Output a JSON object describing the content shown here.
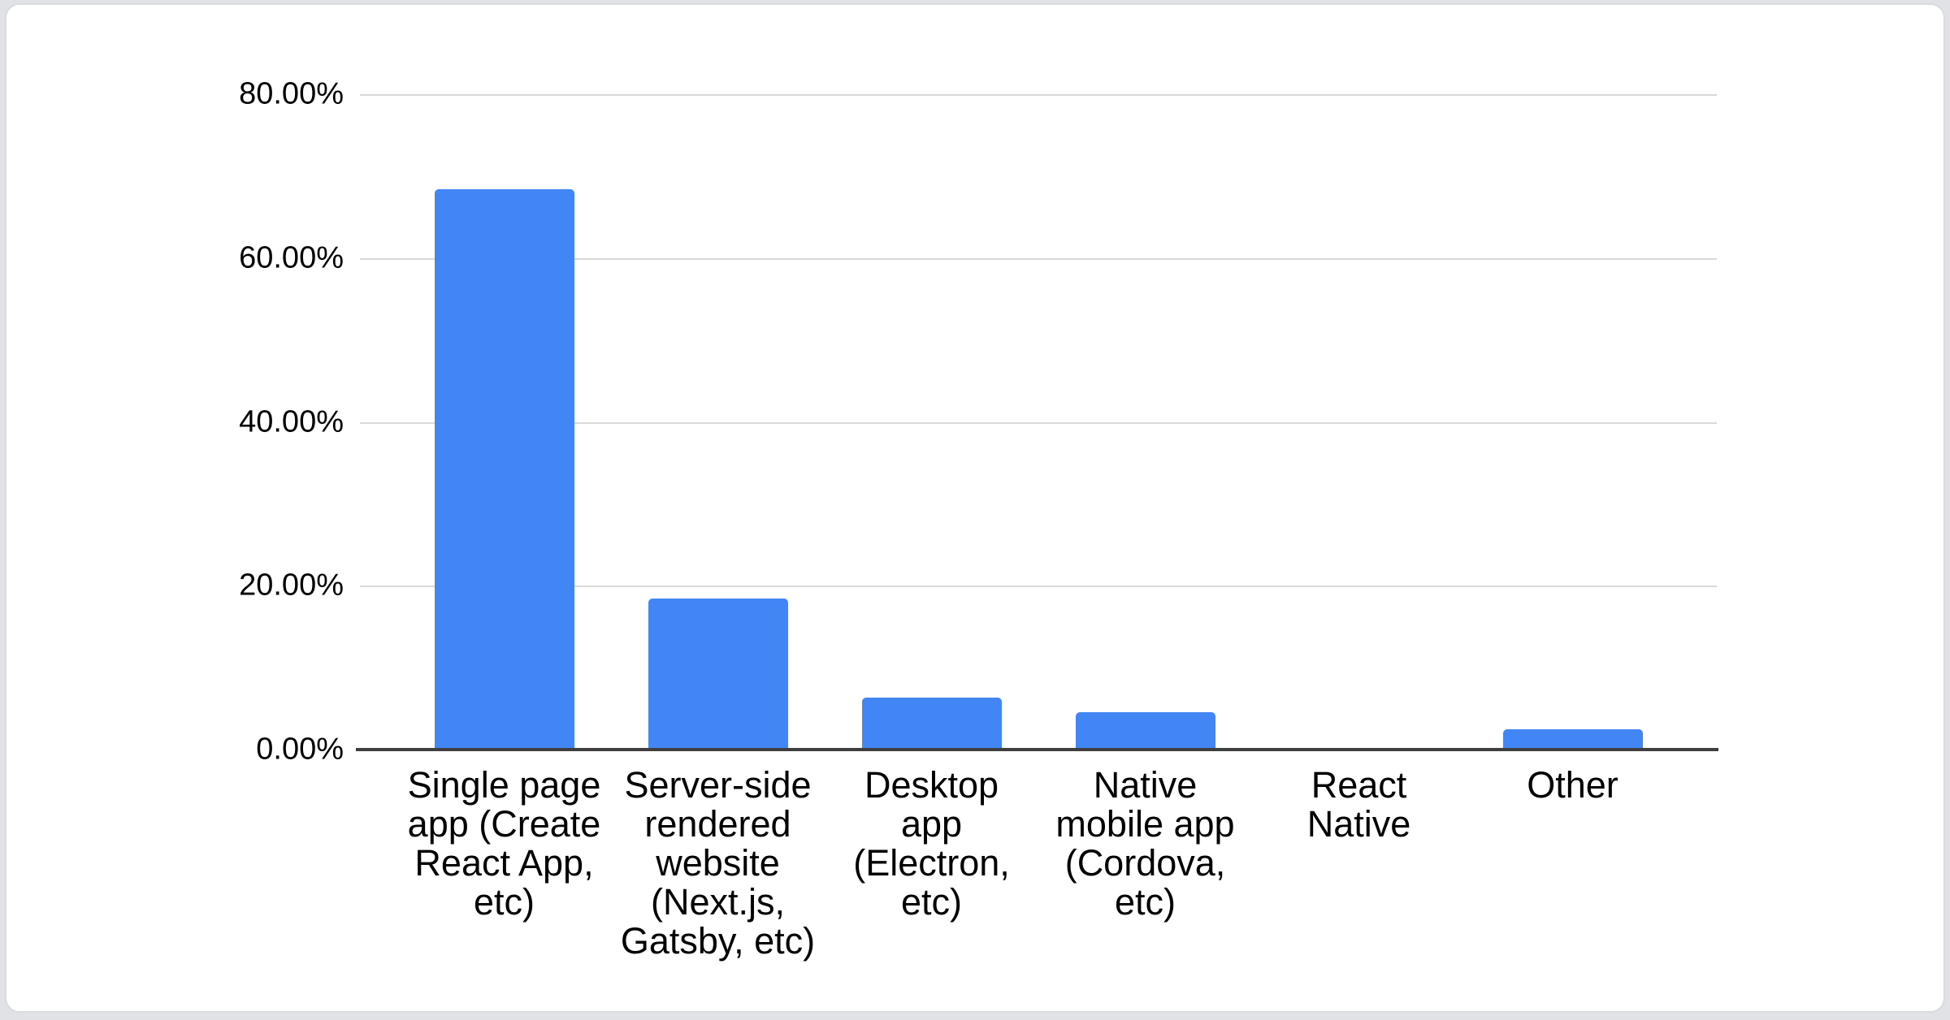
{
  "page": {
    "background_color": "#e0e2e5",
    "card_background_color": "#ffffff"
  },
  "chart_data": {
    "type": "bar",
    "orientation": "vertical",
    "title": "",
    "legend": "none",
    "grid": "horizontal",
    "categories": [
      "Single page app (Create React App, etc)",
      "Server-side rendered website (Next.js, Gatsby, etc)",
      "Desktop app (Electron, etc)",
      "Native mobile app (Cordova, etc)",
      "React Native",
      "Other"
    ],
    "category_label_lines": [
      "Single page\napp (Create\nReact App,\netc)",
      "Server-side\nrendered\nwebsite\n(Next.js,\nGatsby, etc)",
      "Desktop\napp\n(Electron,\netc)",
      "Native\nmobile app\n(Cordova,\netc)",
      "React\nNative",
      "Other"
    ],
    "values": [
      68.4,
      18.4,
      6.3,
      4.6,
      0,
      2.5
    ],
    "y_axis_tick_labels": [
      "80.00%",
      "60.00%",
      "40.00%",
      "20.00%",
      "0.00%"
    ],
    "ylim": [
      0,
      80
    ],
    "bar_color": "#4285f4",
    "gridline_color": "#d9d9d9",
    "axis_baseline_color": "#3f3f3f",
    "label_color": "#000000"
  }
}
